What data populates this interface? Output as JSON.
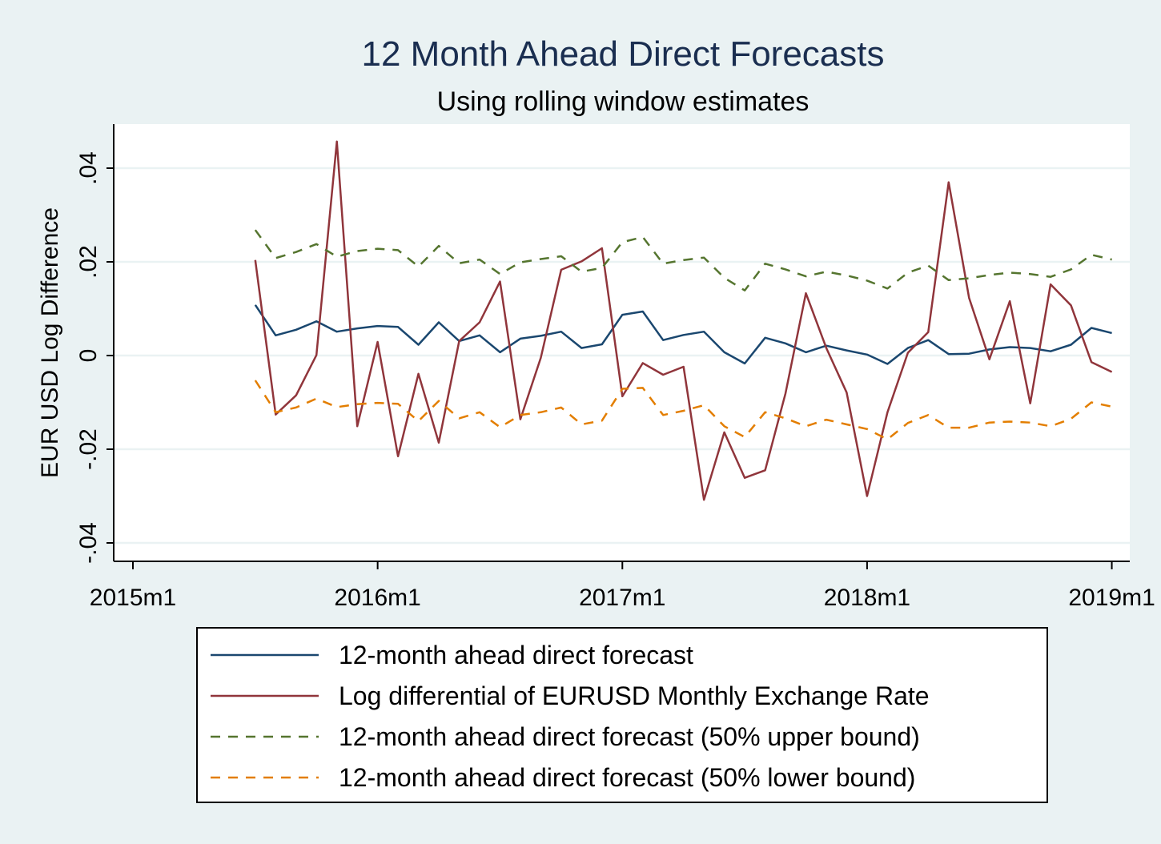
{
  "chart_data": {
    "type": "line",
    "title": "12 Month Ahead Direct Forecasts",
    "subtitle": "Using rolling window estimates",
    "xlabel": "",
    "ylabel": "EUR USD Log Difference",
    "x_ticks": [
      "2015m1",
      "2016m1",
      "2017m1",
      "2018m1",
      "2019m1"
    ],
    "y_ticks": [
      {
        "value": -0.04,
        "label": "-.04"
      },
      {
        "value": -0.02,
        "label": "-.02"
      },
      {
        "value": 0,
        "label": "0"
      },
      {
        "value": 0.02,
        "label": ".02"
      },
      {
        "value": 0.04,
        "label": ".04"
      }
    ],
    "xlim_month_index": [
      -1,
      49
    ],
    "ylim": [
      -0.044,
      0.0495
    ],
    "grid": "horizontal",
    "legend_position": "bottom",
    "x": [
      "2015m7",
      "2015m8",
      "2015m9",
      "2015m10",
      "2015m11",
      "2015m12",
      "2016m1",
      "2016m2",
      "2016m3",
      "2016m4",
      "2016m5",
      "2016m6",
      "2016m7",
      "2016m8",
      "2016m9",
      "2016m10",
      "2016m11",
      "2016m12",
      "2017m1",
      "2017m2",
      "2017m3",
      "2017m4",
      "2017m5",
      "2017m6",
      "2017m7",
      "2017m8",
      "2017m9",
      "2017m10",
      "2017m11",
      "2017m12",
      "2018m1",
      "2018m2",
      "2018m3",
      "2018m4",
      "2018m5",
      "2018m6",
      "2018m7",
      "2018m8",
      "2018m9",
      "2018m10",
      "2018m11",
      "2018m12",
      "2019m1"
    ],
    "series": [
      {
        "name": "12-month ahead direct forecast",
        "color": "#1a476f",
        "dash": "solid",
        "values": [
          0.0108,
          0.0043,
          0.0055,
          0.0073,
          0.0051,
          0.0058,
          0.0063,
          0.0061,
          0.0023,
          0.0071,
          0.0031,
          0.0043,
          0.0007,
          0.0036,
          0.0042,
          0.0051,
          0.0016,
          0.0024,
          0.0087,
          0.0094,
          0.0033,
          0.0044,
          0.0051,
          0.0007,
          -0.0017,
          0.0038,
          0.0026,
          0.0007,
          0.0021,
          0.0011,
          0.0002,
          -0.0018,
          0.0016,
          0.0033,
          0.0003,
          0.0004,
          0.0013,
          0.0018,
          0.0016,
          0.0009,
          0.0023,
          0.0059,
          0.0048
        ]
      },
      {
        "name": "Log differential of EURUSD Monthly Exchange Rate",
        "color": "#90353b",
        "dash": "solid",
        "values": [
          0.0204,
          -0.0126,
          -0.0085,
          0.0001,
          0.0457,
          -0.0151,
          0.0029,
          -0.0215,
          -0.0039,
          -0.0186,
          0.0031,
          0.0071,
          0.0158,
          -0.0136,
          -0.0005,
          0.0183,
          0.0201,
          0.0229,
          -0.0087,
          -0.0016,
          -0.0041,
          -0.0024,
          -0.0308,
          -0.0164,
          -0.0261,
          -0.0245,
          -0.0081,
          0.0133,
          0.0016,
          -0.0079,
          -0.03,
          -0.0121,
          0.0006,
          0.005,
          0.037,
          0.0123,
          -0.0008,
          0.0116,
          -0.0102,
          0.0152,
          0.0107,
          -0.0014,
          -0.0035
        ]
      },
      {
        "name": "12-month ahead direct forecast (50% upper bound)",
        "color": "#55752f",
        "dash": "dashed",
        "values": [
          0.0268,
          0.0208,
          0.0221,
          0.0238,
          0.0211,
          0.0223,
          0.0228,
          0.0225,
          0.019,
          0.0234,
          0.0197,
          0.0205,
          0.0174,
          0.0199,
          0.0206,
          0.0212,
          0.0179,
          0.0187,
          0.0242,
          0.0253,
          0.0196,
          0.0204,
          0.0209,
          0.0166,
          0.0139,
          0.0196,
          0.0184,
          0.0169,
          0.0179,
          0.0171,
          0.016,
          0.0143,
          0.0177,
          0.0192,
          0.0161,
          0.0165,
          0.0172,
          0.0177,
          0.0174,
          0.0168,
          0.0184,
          0.0215,
          0.0205
        ]
      },
      {
        "name": "12-month ahead direct forecast (50% lower bound)",
        "color": "#e37e00",
        "dash": "dashed",
        "values": [
          -0.0053,
          -0.0121,
          -0.0111,
          -0.0092,
          -0.011,
          -0.0104,
          -0.0101,
          -0.0103,
          -0.014,
          -0.0097,
          -0.0134,
          -0.0121,
          -0.0153,
          -0.0127,
          -0.0121,
          -0.0111,
          -0.0147,
          -0.0139,
          -0.0071,
          -0.0069,
          -0.0127,
          -0.0118,
          -0.0106,
          -0.0151,
          -0.0174,
          -0.0121,
          -0.0134,
          -0.0151,
          -0.0137,
          -0.0147,
          -0.0157,
          -0.0179,
          -0.0144,
          -0.0127,
          -0.0154,
          -0.0154,
          -0.0143,
          -0.0141,
          -0.0143,
          -0.0151,
          -0.0135,
          -0.01,
          -0.0109
        ]
      }
    ]
  }
}
